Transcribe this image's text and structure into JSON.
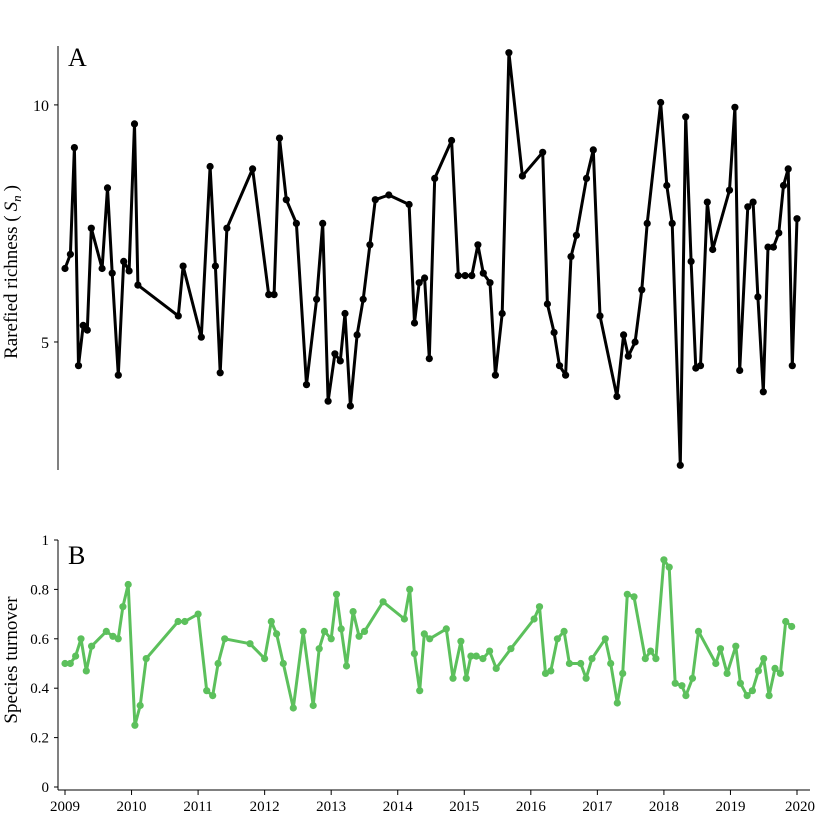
{
  "chart_data": [
    {
      "type": "line",
      "panel_label": "A",
      "ylabel_prefix": "Rarefied richness (",
      "ylabel_symbol": "S",
      "ylabel_subscript": "n",
      "ylabel_suffix": ")",
      "y_ticks": [
        5,
        10
      ],
      "ylim": [
        2.3,
        11.2
      ],
      "xlim": [
        2009.0,
        2019.85
      ],
      "color": "#000000",
      "points": [
        [
          2009.0,
          6.55
        ],
        [
          2009.08,
          6.85
        ],
        [
          2009.14,
          9.1
        ],
        [
          2009.2,
          4.5
        ],
        [
          2009.27,
          5.35
        ],
        [
          2009.33,
          5.25
        ],
        [
          2009.39,
          7.4
        ],
        [
          2009.55,
          6.55
        ],
        [
          2009.63,
          8.25
        ],
        [
          2009.7,
          6.45
        ],
        [
          2009.79,
          4.3
        ],
        [
          2009.87,
          6.7
        ],
        [
          2009.95,
          6.5
        ],
        [
          2010.03,
          9.6
        ],
        [
          2010.08,
          6.2
        ],
        [
          2010.68,
          5.55
        ],
        [
          2010.75,
          6.6
        ],
        [
          2011.02,
          5.1
        ],
        [
          2011.15,
          8.7
        ],
        [
          2011.23,
          6.6
        ],
        [
          2011.3,
          4.35
        ],
        [
          2011.4,
          7.4
        ],
        [
          2011.78,
          8.65
        ],
        [
          2012.02,
          6.0
        ],
        [
          2012.1,
          6.0
        ],
        [
          2012.18,
          9.3
        ],
        [
          2012.28,
          8.0
        ],
        [
          2012.43,
          7.5
        ],
        [
          2012.58,
          4.1
        ],
        [
          2012.73,
          5.9
        ],
        [
          2012.82,
          7.5
        ],
        [
          2012.9,
          3.75
        ],
        [
          2013.0,
          4.75
        ],
        [
          2013.08,
          4.6
        ],
        [
          2013.15,
          5.6
        ],
        [
          2013.23,
          3.65
        ],
        [
          2013.33,
          5.15
        ],
        [
          2013.42,
          5.9
        ],
        [
          2013.52,
          7.05
        ],
        [
          2013.6,
          8.0
        ],
        [
          2013.8,
          8.1
        ],
        [
          2014.1,
          7.9
        ],
        [
          2014.18,
          5.4
        ],
        [
          2014.25,
          6.25
        ],
        [
          2014.33,
          6.35
        ],
        [
          2014.4,
          4.65
        ],
        [
          2014.48,
          8.45
        ],
        [
          2014.73,
          9.25
        ],
        [
          2014.83,
          6.4
        ],
        [
          2014.93,
          6.4
        ],
        [
          2015.03,
          6.4
        ],
        [
          2015.12,
          7.05
        ],
        [
          2015.2,
          6.45
        ],
        [
          2015.3,
          6.25
        ],
        [
          2015.38,
          4.3
        ],
        [
          2015.48,
          5.6
        ],
        [
          2015.58,
          11.1
        ],
        [
          2015.78,
          8.5
        ],
        [
          2016.08,
          9.0
        ],
        [
          2016.15,
          5.8
        ],
        [
          2016.25,
          5.2
        ],
        [
          2016.33,
          4.5
        ],
        [
          2016.42,
          4.3
        ],
        [
          2016.5,
          6.8
        ],
        [
          2016.58,
          7.25
        ],
        [
          2016.73,
          8.45
        ],
        [
          2016.83,
          9.05
        ],
        [
          2016.93,
          5.55
        ],
        [
          2017.18,
          3.85
        ],
        [
          2017.28,
          5.15
        ],
        [
          2017.35,
          4.7
        ],
        [
          2017.45,
          5.0
        ],
        [
          2017.55,
          6.1
        ],
        [
          2017.63,
          7.5
        ],
        [
          2017.83,
          10.05
        ],
        [
          2017.92,
          8.3
        ],
        [
          2018.0,
          7.5
        ],
        [
          2018.12,
          2.4
        ],
        [
          2018.2,
          9.75
        ],
        [
          2018.28,
          6.7
        ],
        [
          2018.35,
          4.45
        ],
        [
          2018.42,
          4.5
        ],
        [
          2018.52,
          7.95
        ],
        [
          2018.6,
          6.95
        ],
        [
          2018.85,
          8.2
        ],
        [
          2018.93,
          9.95
        ],
        [
          2019.0,
          4.4
        ],
        [
          2019.12,
          7.85
        ],
        [
          2019.2,
          7.95
        ],
        [
          2019.27,
          5.95
        ],
        [
          2019.35,
          3.95
        ],
        [
          2019.42,
          7.0
        ],
        [
          2019.5,
          7.0
        ],
        [
          2019.58,
          7.3
        ],
        [
          2019.65,
          8.3
        ],
        [
          2019.72,
          8.65
        ],
        [
          2019.78,
          4.5
        ],
        [
          2019.85,
          7.6
        ]
      ]
    },
    {
      "type": "line",
      "panel_label": "B",
      "ylabel": "Species turnover",
      "y_ticks": [
        0,
        0.2,
        0.4,
        0.6,
        0.8,
        1
      ],
      "y_tick_labels": [
        "0",
        "0.2",
        "0.4",
        "0.6",
        "0.8",
        "1"
      ],
      "ylim": [
        0,
        1
      ],
      "xlim": [
        2009.0,
        2020.0
      ],
      "x_ticks": [
        2009,
        2010,
        2011,
        2012,
        2013,
        2014,
        2015,
        2016,
        2017,
        2018,
        2019,
        2020
      ],
      "x_tick_labels": [
        "2009",
        "2010",
        "2011",
        "2012",
        "2013",
        "2014",
        "2015",
        "2016",
        "2017",
        "2018",
        "2019",
        "2020"
      ],
      "color": "#5cc05c",
      "points": [
        [
          2009.0,
          0.5
        ],
        [
          2009.08,
          0.5
        ],
        [
          2009.16,
          0.53
        ],
        [
          2009.24,
          0.6
        ],
        [
          2009.32,
          0.47
        ],
        [
          2009.4,
          0.57
        ],
        [
          2009.62,
          0.63
        ],
        [
          2009.72,
          0.61
        ],
        [
          2009.8,
          0.6
        ],
        [
          2009.87,
          0.73
        ],
        [
          2009.95,
          0.82
        ],
        [
          2010.05,
          0.25
        ],
        [
          2010.13,
          0.33
        ],
        [
          2010.22,
          0.52
        ],
        [
          2010.7,
          0.67
        ],
        [
          2010.8,
          0.67
        ],
        [
          2011.0,
          0.7
        ],
        [
          2011.13,
          0.39
        ],
        [
          2011.22,
          0.37
        ],
        [
          2011.3,
          0.5
        ],
        [
          2011.4,
          0.6
        ],
        [
          2011.78,
          0.58
        ],
        [
          2012.0,
          0.52
        ],
        [
          2012.1,
          0.67
        ],
        [
          2012.18,
          0.62
        ],
        [
          2012.28,
          0.5
        ],
        [
          2012.43,
          0.32
        ],
        [
          2012.58,
          0.63
        ],
        [
          2012.73,
          0.33
        ],
        [
          2012.82,
          0.56
        ],
        [
          2012.9,
          0.63
        ],
        [
          2013.0,
          0.6
        ],
        [
          2013.08,
          0.78
        ],
        [
          2013.15,
          0.64
        ],
        [
          2013.23,
          0.49
        ],
        [
          2013.33,
          0.71
        ],
        [
          2013.42,
          0.61
        ],
        [
          2013.5,
          0.63
        ],
        [
          2013.78,
          0.75
        ],
        [
          2014.1,
          0.68
        ],
        [
          2014.18,
          0.8
        ],
        [
          2014.25,
          0.54
        ],
        [
          2014.33,
          0.39
        ],
        [
          2014.4,
          0.62
        ],
        [
          2014.48,
          0.6
        ],
        [
          2014.73,
          0.64
        ],
        [
          2014.83,
          0.44
        ],
        [
          2014.95,
          0.59
        ],
        [
          2015.03,
          0.44
        ],
        [
          2015.1,
          0.53
        ],
        [
          2015.18,
          0.53
        ],
        [
          2015.28,
          0.52
        ],
        [
          2015.38,
          0.55
        ],
        [
          2015.48,
          0.48
        ],
        [
          2015.7,
          0.56
        ],
        [
          2016.05,
          0.68
        ],
        [
          2016.13,
          0.73
        ],
        [
          2016.22,
          0.46
        ],
        [
          2016.3,
          0.47
        ],
        [
          2016.4,
          0.6
        ],
        [
          2016.5,
          0.63
        ],
        [
          2016.58,
          0.5
        ],
        [
          2016.75,
          0.5
        ],
        [
          2016.83,
          0.44
        ],
        [
          2016.92,
          0.52
        ],
        [
          2017.12,
          0.6
        ],
        [
          2017.2,
          0.5
        ],
        [
          2017.3,
          0.34
        ],
        [
          2017.38,
          0.46
        ],
        [
          2017.45,
          0.78
        ],
        [
          2017.55,
          0.77
        ],
        [
          2017.72,
          0.52
        ],
        [
          2017.8,
          0.55
        ],
        [
          2017.88,
          0.52
        ],
        [
          2018.0,
          0.92
        ],
        [
          2018.08,
          0.89
        ],
        [
          2018.17,
          0.42
        ],
        [
          2018.27,
          0.41
        ],
        [
          2018.33,
          0.37
        ],
        [
          2018.43,
          0.44
        ],
        [
          2018.52,
          0.63
        ],
        [
          2018.78,
          0.5
        ],
        [
          2018.85,
          0.56
        ],
        [
          2018.95,
          0.46
        ],
        [
          2019.08,
          0.57
        ],
        [
          2019.15,
          0.42
        ],
        [
          2019.25,
          0.37
        ],
        [
          2019.33,
          0.39
        ],
        [
          2019.42,
          0.47
        ],
        [
          2019.5,
          0.52
        ],
        [
          2019.58,
          0.37
        ],
        [
          2019.67,
          0.48
        ],
        [
          2019.75,
          0.46
        ],
        [
          2019.83,
          0.67
        ],
        [
          2019.92,
          0.65
        ]
      ]
    }
  ]
}
